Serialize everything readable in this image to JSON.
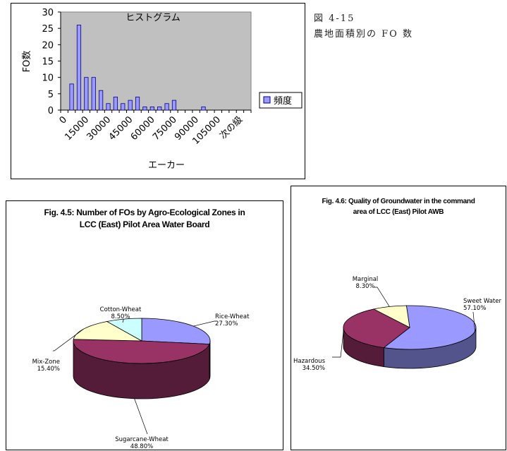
{
  "caption": {
    "line1": "図 4-15",
    "line2": "農地面積別の FO 数"
  },
  "chart_data": [
    {
      "type": "bar",
      "title": "ヒストグラム",
      "xlabel": "エーカー",
      "ylabel": "FO数",
      "ylim": [
        0,
        30
      ],
      "yticks": [
        0,
        5,
        10,
        15,
        20,
        25,
        30
      ],
      "xtick_labels": [
        "0",
        "15000",
        "30000",
        "45000",
        "60000",
        "75000",
        "90000",
        "105000",
        "次の級"
      ],
      "legend_position": "right",
      "grid": false,
      "series": [
        {
          "name": "頻度",
          "color": "#9999ff",
          "values": [
            0,
            8,
            26,
            10,
            10,
            6,
            2,
            4,
            2,
            3,
            4,
            1,
            1,
            1,
            2,
            3,
            0,
            0,
            0,
            1,
            0,
            0,
            0,
            0,
            0,
            0
          ]
        }
      ]
    },
    {
      "type": "pie",
      "title_line1": "Fig. 4.5: Number of FOs by Agro-Ecological Zones in",
      "title_line2": "LCC (East) Pilot Area Water Board",
      "slices": [
        {
          "label": "Rice-Wheat",
          "value": 27.3,
          "pct": "27.30%",
          "color": "#9999ff"
        },
        {
          "label": "Sugarcane-Wheat",
          "value": 48.8,
          "pct": "48.80%",
          "color": "#993366"
        },
        {
          "label": "Mix-Zone",
          "value": 15.4,
          "pct": "15.40%",
          "color": "#ffffcc"
        },
        {
          "label": "Cotton-Wheat",
          "value": 8.5,
          "pct": "8.50%",
          "color": "#ccffff"
        }
      ]
    },
    {
      "type": "pie",
      "title_line1": "Fig. 4.6: Quality of Groundwater in the command",
      "title_line2": "area of LCC (East) Pilot AWB",
      "slices": [
        {
          "label": "Sweet Water",
          "value": 57.1,
          "pct": "57.10%",
          "color": "#9999ff"
        },
        {
          "label": "Hazardous",
          "value": 34.5,
          "pct": "34.50%",
          "color": "#993366"
        },
        {
          "label": "Marginal",
          "value": 8.3,
          "pct": "8.30%",
          "color": "#ffffcc"
        }
      ]
    }
  ]
}
